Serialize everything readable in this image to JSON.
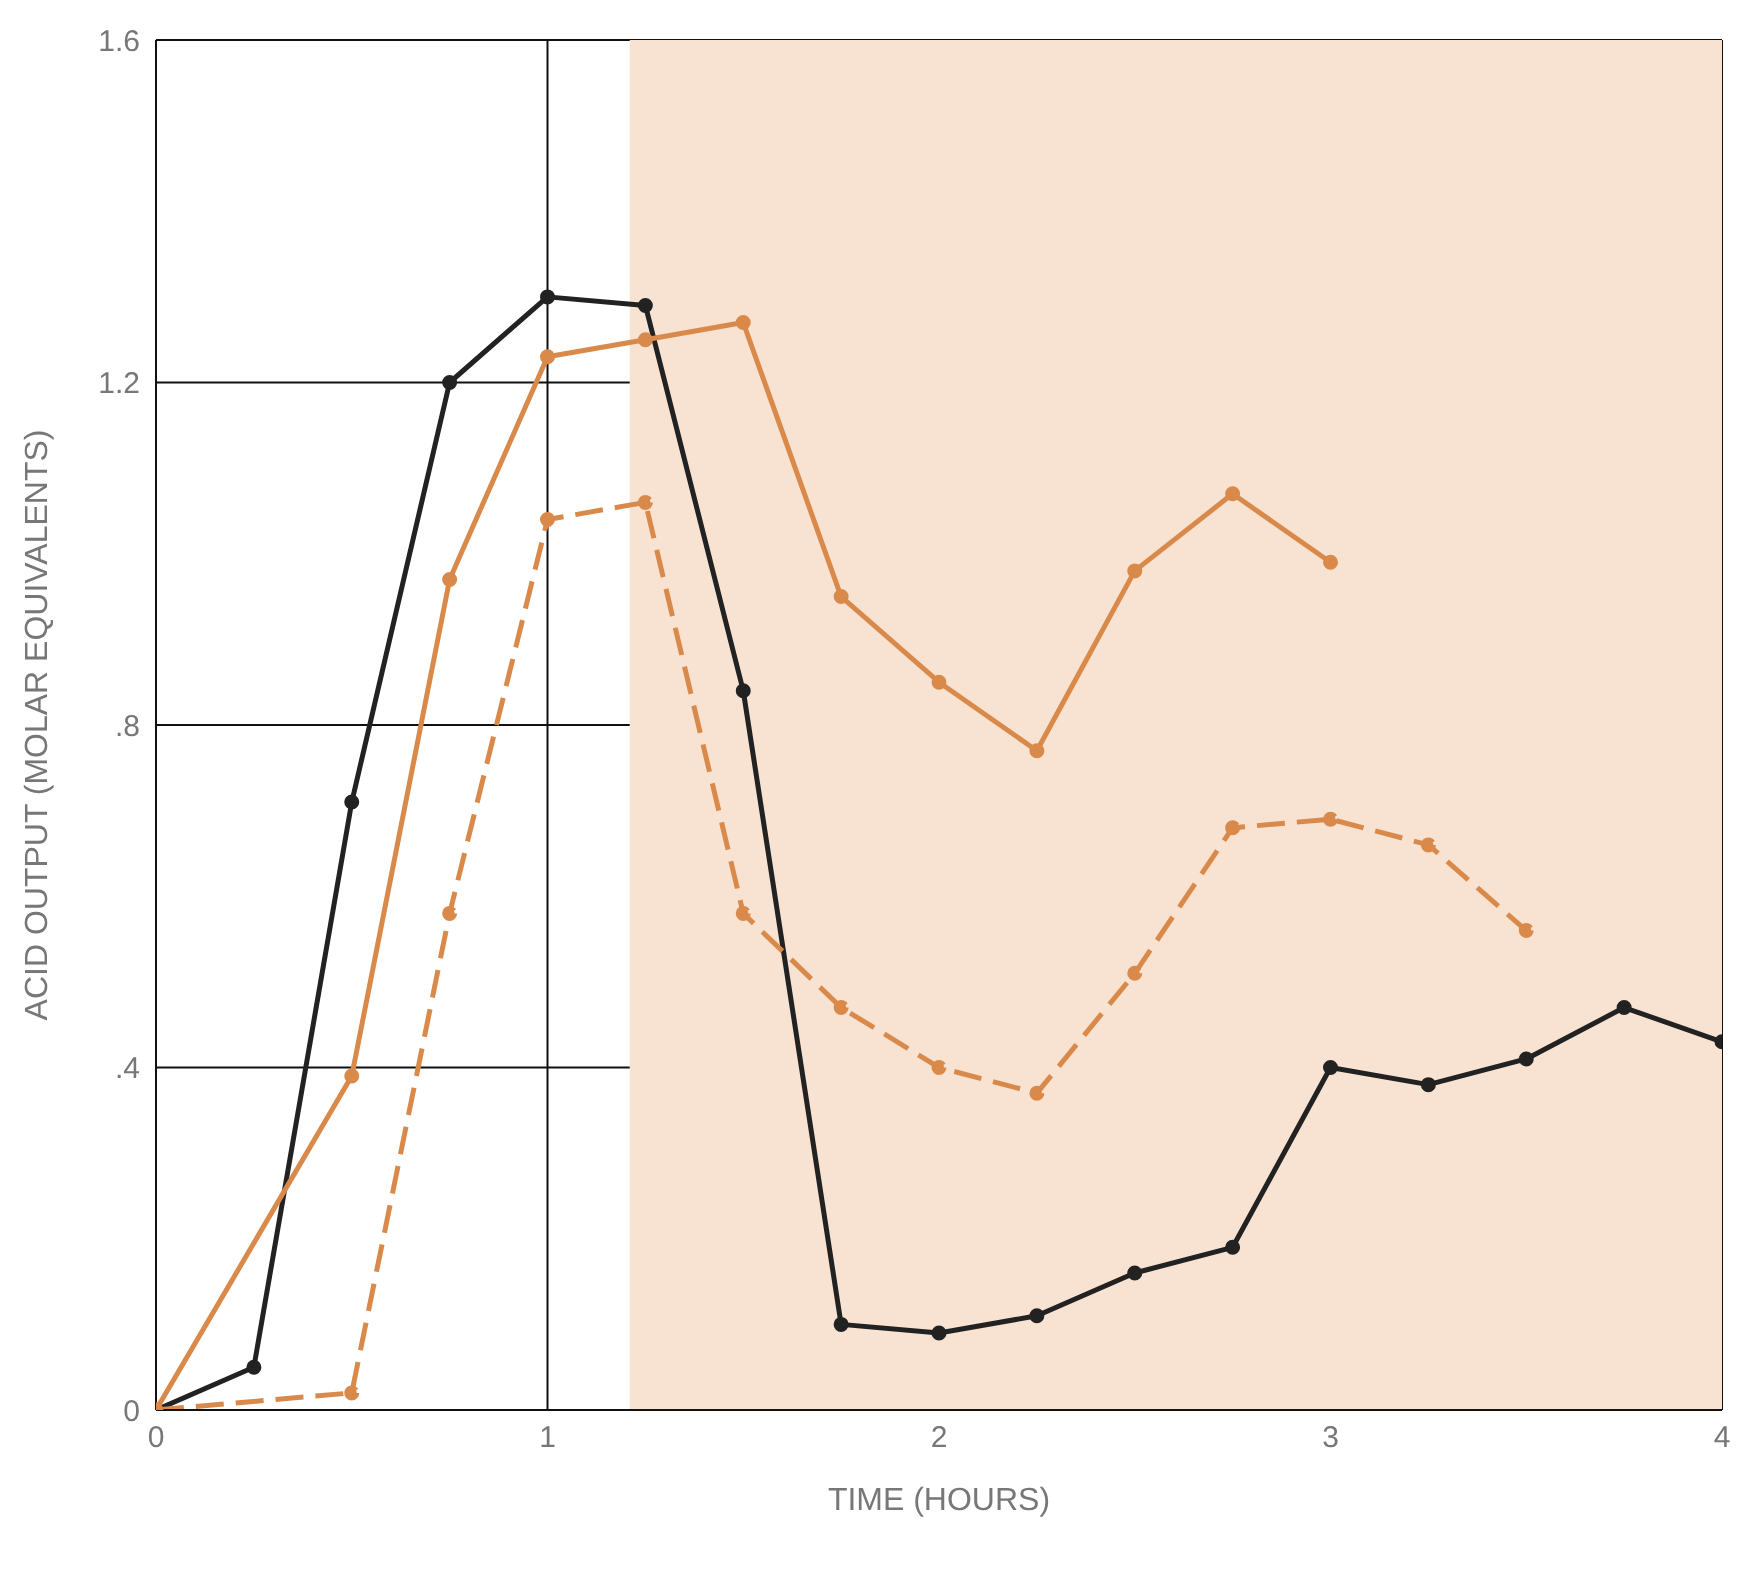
{
  "chart_data": {
    "type": "line",
    "xlabel": "TIME (HOURS)",
    "ylabel": "ACID OUTPUT (MOLAR EQUIVALENTS)",
    "xlim": [
      0,
      4
    ],
    "xticks": [
      0,
      1,
      2,
      3,
      4
    ],
    "ylim": [
      0,
      1.6
    ],
    "yticks": [
      0,
      {
        "value": 0.4,
        "label": ".4"
      },
      {
        "value": 0.8,
        "label": ".8"
      },
      1.2,
      1.6
    ],
    "grid": true,
    "marker": "circle",
    "line_style": "solid",
    "bands": [
      {
        "axis": "x",
        "from": 1.21,
        "to": 4,
        "color": "#f8e3d3"
      }
    ],
    "series": [
      {
        "color": "#222222",
        "x": [
          0,
          0.25,
          0.5,
          0.75,
          1,
          1.25,
          1.5,
          1.75,
          2,
          2.25,
          2.5,
          2.75,
          3,
          3.25,
          3.5,
          3.75,
          4
        ],
        "values": [
          0,
          0.05,
          0.71,
          1.2,
          1.3,
          1.29,
          0.84,
          0.1,
          0.09,
          0.11,
          0.16,
          0.19,
          0.4,
          0.38,
          0.41,
          0.47,
          0.43
        ]
      },
      {
        "color": "#d98a4a",
        "x": [
          0,
          0.5,
          0.75,
          1,
          1.25,
          1.5,
          1.75,
          2,
          2.25,
          2.5,
          2.75,
          3
        ],
        "values": [
          0,
          0.39,
          0.97,
          1.23,
          1.25,
          1.27,
          0.95,
          0.85,
          0.77,
          0.98,
          1.07,
          0.99
        ]
      },
      {
        "color": "#d98a4a",
        "line_style": "dashed",
        "x": [
          0,
          0.5,
          0.75,
          1,
          1.25,
          1.5,
          1.75,
          2,
          2.25,
          2.5,
          2.75,
          3,
          3.25,
          3.5
        ],
        "values": [
          0,
          0.02,
          0.58,
          1.04,
          1.06,
          0.58,
          0.47,
          0.4,
          0.37,
          0.51,
          0.68,
          0.69,
          0.66,
          0.56
        ]
      }
    ]
  }
}
